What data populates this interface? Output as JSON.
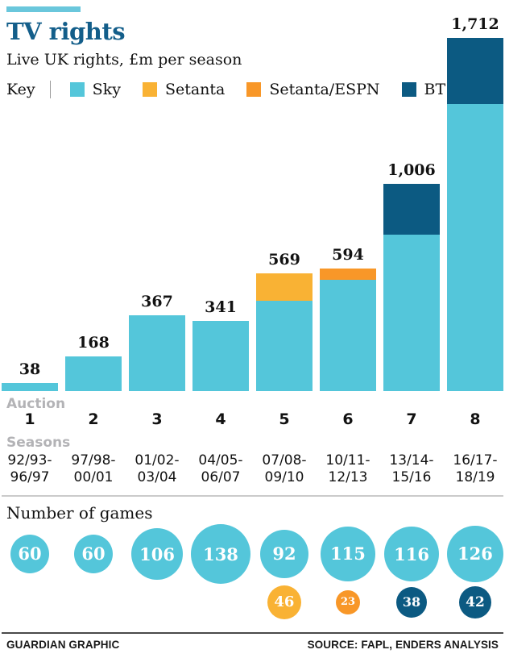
{
  "header": {
    "title": "TV rights",
    "subtitle": "Live UK rights, £m per season"
  },
  "legend": {
    "label": "Key",
    "items": [
      {
        "name": "Sky",
        "color": "#54c6da"
      },
      {
        "name": "Setanta",
        "color": "#f9b234"
      },
      {
        "name": "Setanta/ESPN",
        "color": "#f89728"
      },
      {
        "name": "BT",
        "color": "#0c5a82"
      }
    ]
  },
  "chart_data": {
    "type": "bar",
    "stacked": true,
    "title": "TV rights",
    "subtitle": "Live UK rights, £m per season",
    "ylabel": "£m per season",
    "ylim": [
      0,
      1712
    ],
    "grid": false,
    "legend_position": "top",
    "x_axis": {
      "label": "Auction",
      "ticks": [
        "1",
        "2",
        "3",
        "4",
        "5",
        "6",
        "7",
        "8"
      ]
    },
    "seasons_axis": {
      "label": "Seasons",
      "ticks": [
        [
          "92/93-",
          "96/97"
        ],
        [
          "97/98-",
          "00/01"
        ],
        [
          "01/02-",
          "03/04"
        ],
        [
          "04/05-",
          "06/07"
        ],
        [
          "07/08-",
          "09/10"
        ],
        [
          "10/11-",
          "12/13"
        ],
        [
          "13/14-",
          "15/16"
        ],
        [
          "16/17-",
          "18/19"
        ]
      ]
    },
    "totals": [
      38,
      168,
      367,
      341,
      569,
      594,
      1006,
      1712
    ],
    "totals_labels": [
      "38",
      "168",
      "367",
      "341",
      "569",
      "594",
      "1,006",
      "1,712"
    ],
    "series": [
      {
        "name": "Sky",
        "color": "#54c6da",
        "dotted": true,
        "values": [
          38,
          168,
          367,
          341,
          438,
          541,
          760,
          1392
        ]
      },
      {
        "name": "Setanta",
        "color": "#f9b234",
        "dotted": true,
        "values": [
          0,
          0,
          0,
          0,
          131,
          0,
          0,
          0
        ]
      },
      {
        "name": "Setanta/ESPN",
        "color": "#f89728",
        "dotted": false,
        "values": [
          0,
          0,
          0,
          0,
          0,
          53,
          0,
          0
        ]
      },
      {
        "name": "BT",
        "color": "#0c5a82",
        "dotted": false,
        "values": [
          0,
          0,
          0,
          0,
          0,
          0,
          246,
          320
        ]
      }
    ]
  },
  "games": {
    "heading": "Number of games",
    "primary": [
      {
        "value": 60,
        "label": "60",
        "color": "#54c6da"
      },
      {
        "value": 60,
        "label": "60",
        "color": "#54c6da"
      },
      {
        "value": 106,
        "label": "106",
        "color": "#54c6da"
      },
      {
        "value": 138,
        "label": "138",
        "color": "#54c6da"
      },
      {
        "value": 92,
        "label": "92",
        "color": "#54c6da"
      },
      {
        "value": 115,
        "label": "115",
        "color": "#54c6da"
      },
      {
        "value": 116,
        "label": "116",
        "color": "#54c6da"
      },
      {
        "value": 126,
        "label": "126",
        "color": "#54c6da"
      }
    ],
    "secondary": [
      {
        "column": 5,
        "value": 46,
        "label": "46",
        "color": "#f9b234"
      },
      {
        "column": 6,
        "value": 23,
        "label": "23",
        "color": "#f89728"
      },
      {
        "column": 7,
        "value": 38,
        "label": "38",
        "color": "#0c5a82"
      },
      {
        "column": 8,
        "value": 42,
        "label": "42",
        "color": "#0c5a82"
      }
    ]
  },
  "footer": {
    "credit": "GUARDIAN GRAPHIC",
    "source": "SOURCE: FAPL, ENDERS ANALYSIS"
  }
}
